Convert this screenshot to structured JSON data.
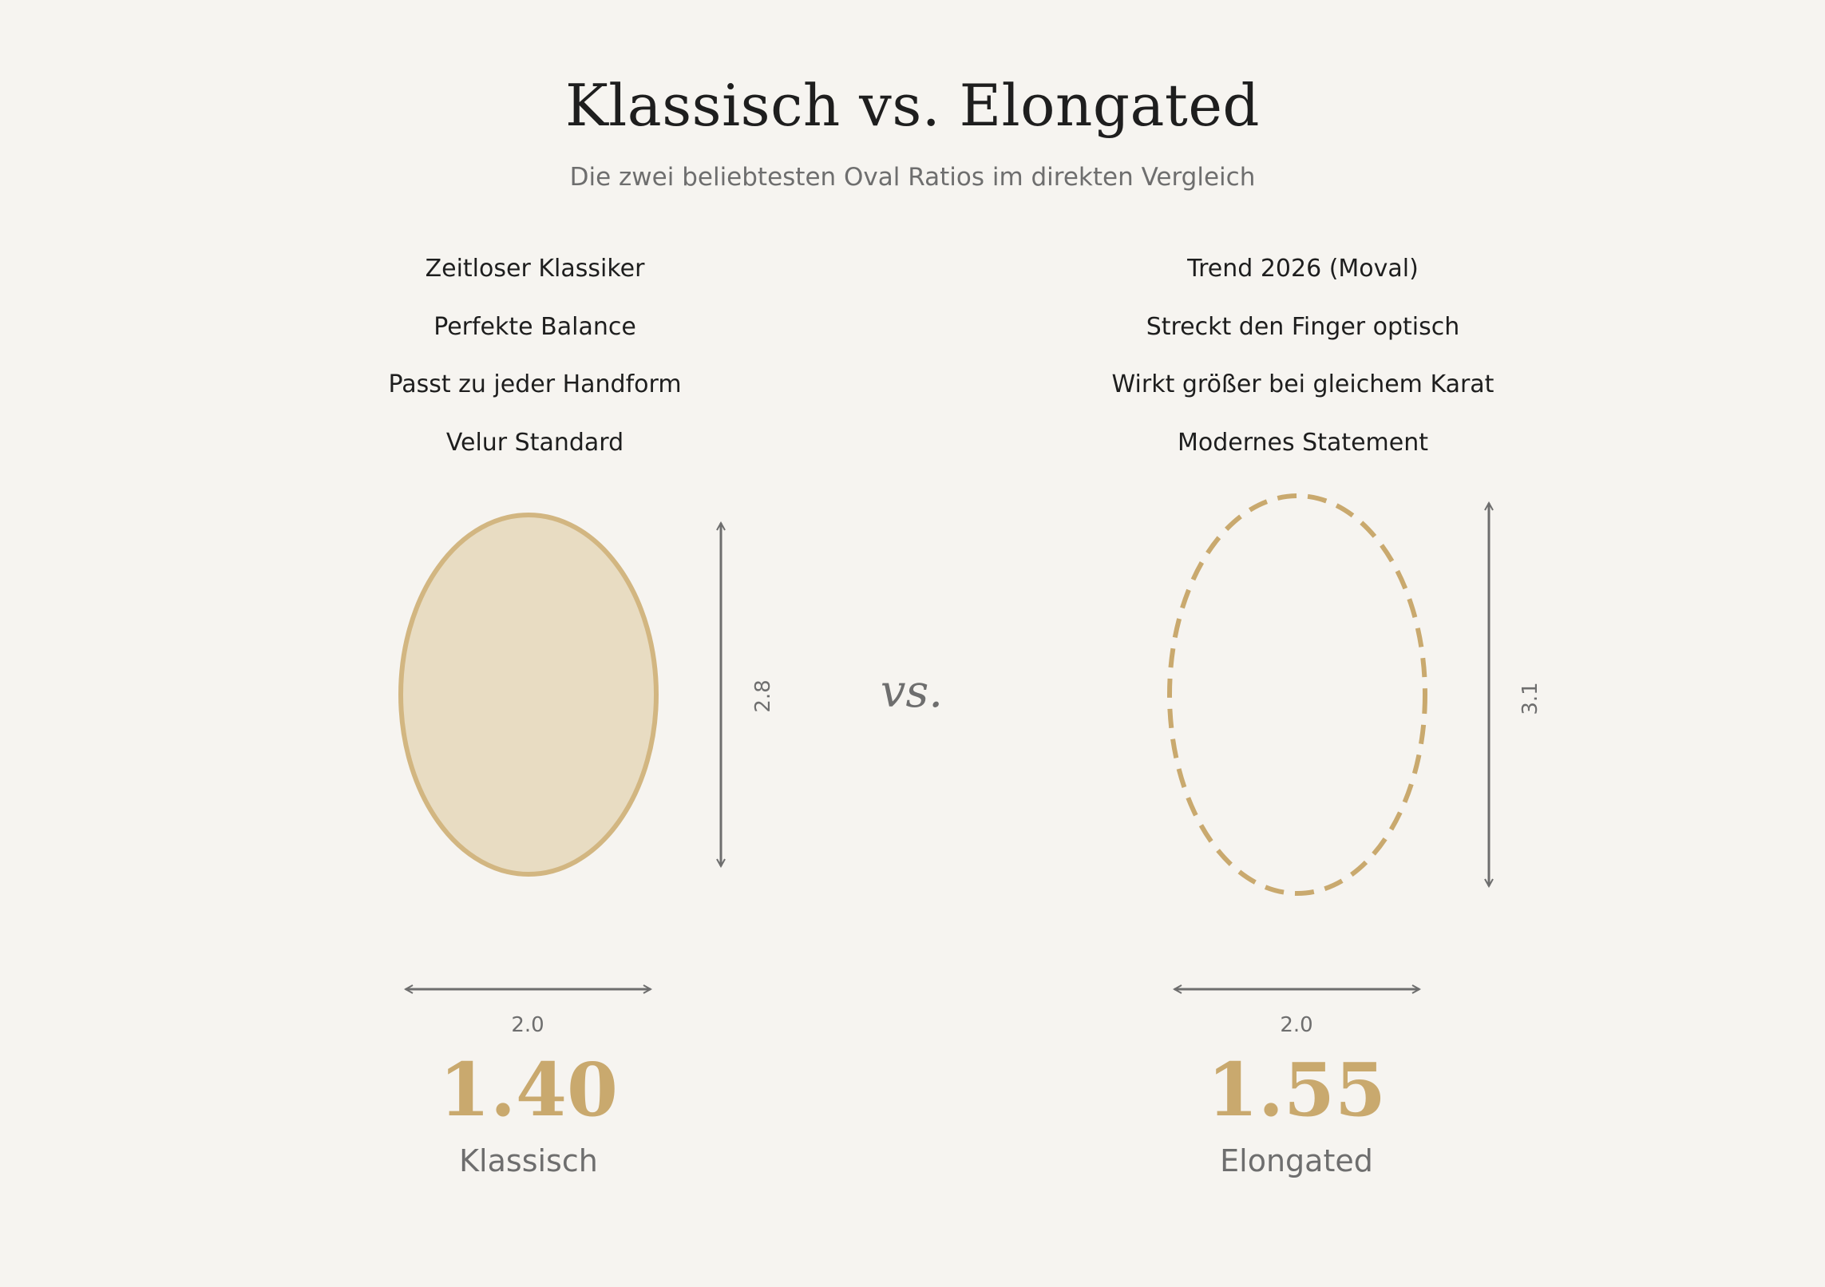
{
  "header": {
    "title": "Klassisch vs. Elongated",
    "subtitle": "Die zwei beliebtesten Oval Ratios im direkten Vergleich"
  },
  "colors": {
    "background": "#f6f4f0",
    "accent_gold": "#c9a96e",
    "oval_fill": "#e8dcc2",
    "arrow_gray": "#6e6e6e"
  },
  "classic": {
    "features": [
      "Zeitloser Klassiker",
      "Perfekte Balance",
      "Passt zu jeder Handform",
      "Velur Standard"
    ],
    "height_label": "2.8",
    "width_label": "2.0",
    "ratio": "1.40",
    "name": "Klassisch",
    "style": "solid"
  },
  "separator": "vs.",
  "elongated": {
    "features": [
      "Trend 2026 (Moval)",
      "Streckt den Finger optisch",
      "Wirkt größer bei gleichem Karat",
      "Modernes Statement"
    ],
    "height_label": "3.1",
    "width_label": "2.0",
    "ratio": "1.55",
    "name": "Elongated",
    "style": "dashed"
  }
}
